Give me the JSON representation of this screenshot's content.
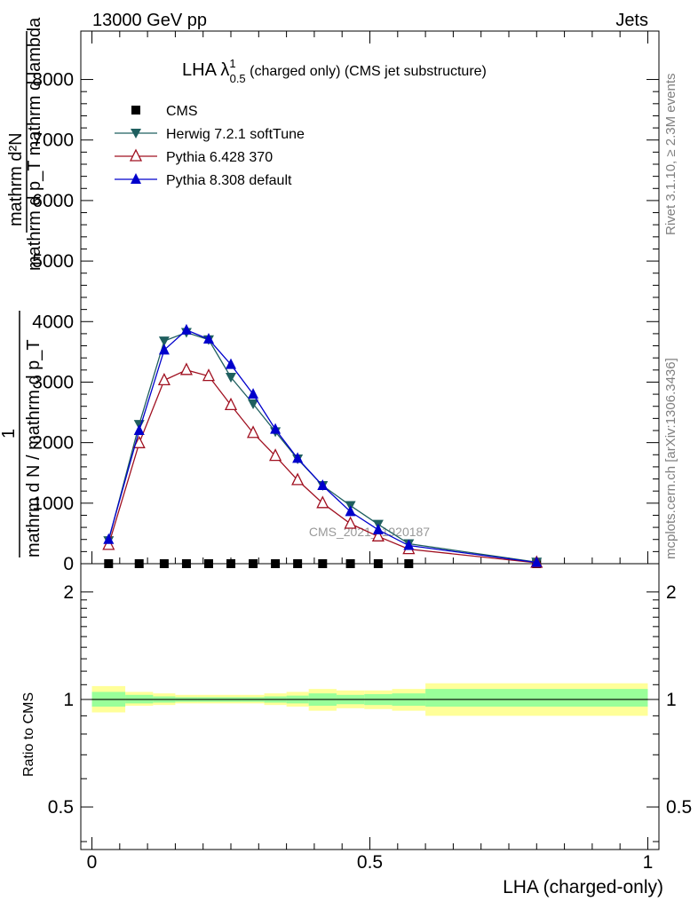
{
  "header": {
    "left": "13000 GeV pp",
    "right": "Jets"
  },
  "side_labels": {
    "rivet": "Rivet 3.1.10, ≥ 2.3M events",
    "mcplots": "mcplots.cern.ch [arXiv:1306.3436]"
  },
  "watermark": "CMS_2021_I1920187",
  "chart_data": [
    {
      "type": "line",
      "title": {
        "main": "LHA λ",
        "sup": "1",
        "sub": "0.5",
        "rest": " (charged only) (CMS jet substructure)"
      },
      "ylabel": {
        "numerator": "mathrm d²N",
        "denominator": "mathrm d p_T mathrm d lambda",
        "prefix": "1 / mathrm d N / mathrm d p_T",
        "one": "1",
        "frac_denominator": "mathrm d N / mathrm d p",
        "outer_denominator": "mathrm d N / mathrm d p_T"
      },
      "ylabel_lines": [
        "mathrm d²N",
        "mathrm d p_T mathrm d lambda",
        "1",
        "mathrm d N / mathrm d p_T"
      ],
      "ylim": [
        0,
        8800
      ],
      "yticks": [
        0,
        1000,
        2000,
        3000,
        4000,
        5000,
        6000,
        7000,
        8000
      ],
      "ytick_labels": [
        "0",
        "1000",
        "2000",
        "3000",
        "4000",
        "5000",
        "6000",
        "7000",
        "8000"
      ],
      "x": [
        0.03,
        0.085,
        0.13,
        0.17,
        0.21,
        0.25,
        0.29,
        0.33,
        0.37,
        0.415,
        0.465,
        0.515,
        0.57,
        0.8
      ],
      "series": [
        {
          "name": "CMS",
          "color": "#000000",
          "marker": "square",
          "values": [
            0,
            0,
            0,
            0,
            0,
            0,
            0,
            0,
            0,
            0,
            0,
            0,
            0,
            0
          ]
        },
        {
          "name": "Herwig 7.2.1 softTune",
          "color": "#1f5f5f",
          "marker": "triangle-down",
          "values": [
            380,
            2300,
            3680,
            3820,
            3700,
            3080,
            2640,
            2180,
            1730,
            1290,
            960,
            650,
            330,
            25
          ]
        },
        {
          "name": "Pythia 6.428 370",
          "color": "#a01020",
          "marker": "triangle-up-open",
          "values": [
            310,
            1990,
            3030,
            3200,
            3100,
            2620,
            2160,
            1780,
            1380,
            1000,
            660,
            450,
            240,
            15
          ]
        },
        {
          "name": "Pythia 8.308 default",
          "color": "#0000cc",
          "marker": "triangle-up",
          "values": [
            400,
            2200,
            3530,
            3860,
            3710,
            3290,
            2800,
            2220,
            1740,
            1290,
            860,
            560,
            300,
            20
          ]
        }
      ],
      "legend": "top-left"
    },
    {
      "type": "area",
      "ylabel": "Ratio to CMS",
      "xlabel": "LHA (charged-only)",
      "xlim": [
        -0.02,
        1.02
      ],
      "xticks": [
        0,
        0.5,
        1
      ],
      "xtick_labels": [
        "0",
        "0.5",
        "1"
      ],
      "ylim": [
        0.38,
        2.4
      ],
      "yticks": [
        0.5,
        1,
        2
      ],
      "ytick_labels": [
        "0.5",
        "1",
        "2"
      ],
      "log_y": true,
      "bin_edges": [
        0.0,
        0.06,
        0.11,
        0.15,
        0.19,
        0.23,
        0.27,
        0.31,
        0.35,
        0.39,
        0.44,
        0.49,
        0.54,
        0.6,
        1.0
      ],
      "band_inner": [
        [
          0.955,
          1.05
        ],
        [
          0.975,
          1.03
        ],
        [
          0.98,
          1.02
        ],
        [
          0.985,
          1.015
        ],
        [
          0.985,
          1.015
        ],
        [
          0.985,
          1.015
        ],
        [
          0.985,
          1.015
        ],
        [
          0.98,
          1.02
        ],
        [
          0.975,
          1.025
        ],
        [
          0.96,
          1.04
        ],
        [
          0.97,
          1.03
        ],
        [
          0.965,
          1.035
        ],
        [
          0.96,
          1.04
        ],
        [
          0.955,
          1.07
        ]
      ],
      "band_outer": [
        [
          0.92,
          1.09
        ],
        [
          0.96,
          1.05
        ],
        [
          0.965,
          1.04
        ],
        [
          0.975,
          1.03
        ],
        [
          0.975,
          1.03
        ],
        [
          0.975,
          1.03
        ],
        [
          0.975,
          1.03
        ],
        [
          0.965,
          1.04
        ],
        [
          0.955,
          1.05
        ],
        [
          0.93,
          1.07
        ],
        [
          0.945,
          1.06
        ],
        [
          0.94,
          1.06
        ],
        [
          0.93,
          1.07
        ],
        [
          0.9,
          1.11
        ]
      ],
      "reference": 1
    }
  ]
}
